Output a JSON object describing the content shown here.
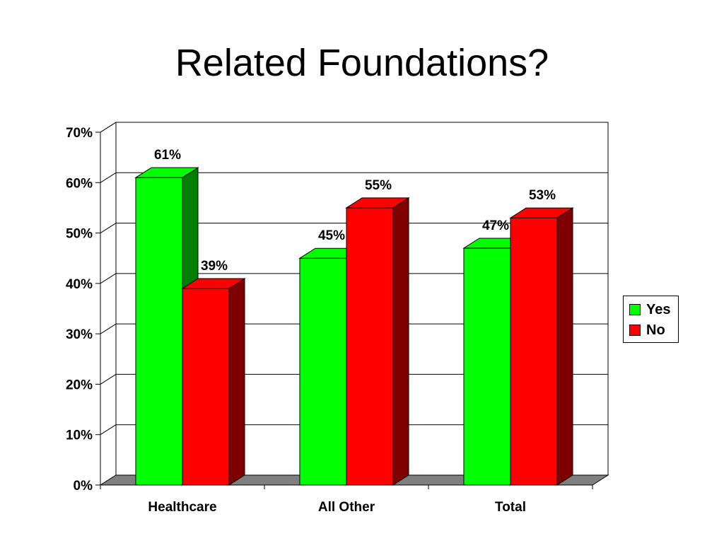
{
  "slide": {
    "title": "Related Foundations?"
  },
  "chart_data": {
    "type": "bar",
    "title": "",
    "xlabel": "",
    "ylabel": "",
    "categories": [
      "Healthcare",
      "All Other",
      "Total"
    ],
    "series": [
      {
        "name": "Yes",
        "values": [
          61,
          45,
          47
        ],
        "labels": [
          "61%",
          "45%",
          "47%"
        ],
        "color": "#00ff00",
        "side_color": "#007f00"
      },
      {
        "name": "No",
        "values": [
          39,
          55,
          53
        ],
        "labels": [
          "39%",
          "55%",
          "53%"
        ],
        "color": "#ff0000",
        "side_color": "#7f0000"
      }
    ],
    "ylim": [
      0,
      70
    ],
    "yticks": [
      "0%",
      "10%",
      "20%",
      "30%",
      "40%",
      "50%",
      "60%",
      "70%"
    ],
    "grid": true,
    "legend": "right",
    "style": "3d-clustered-columns"
  }
}
